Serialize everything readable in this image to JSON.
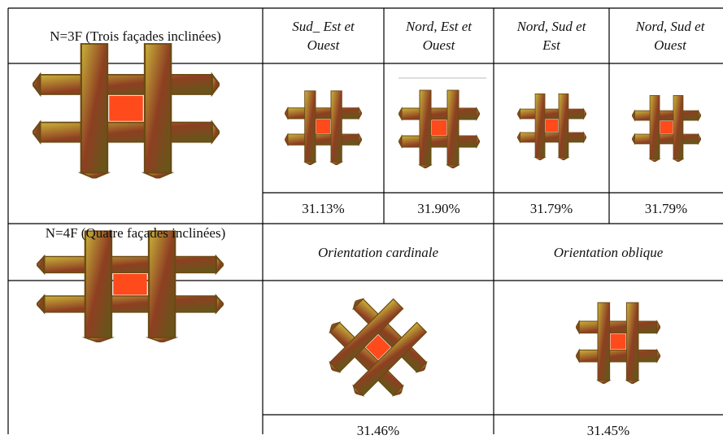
{
  "table": {
    "rows": [
      [
        "N=3F (Trois façades inclinées)",
        "Sud_ Est et Ouest",
        "Nord, Est et Ouest",
        "Nord, Sud et Est",
        "Nord, Sud et Ouest"
      ],
      [
        "31.13%",
        "31.90%",
        "31.79%",
        "31.79%"
      ],
      [
        "N=4F (Quatre façades inclinées)",
        "Orientation cardinale",
        "Orientation oblique"
      ],
      [
        "31.46%",
        "31.45%"
      ]
    ]
  }
}
